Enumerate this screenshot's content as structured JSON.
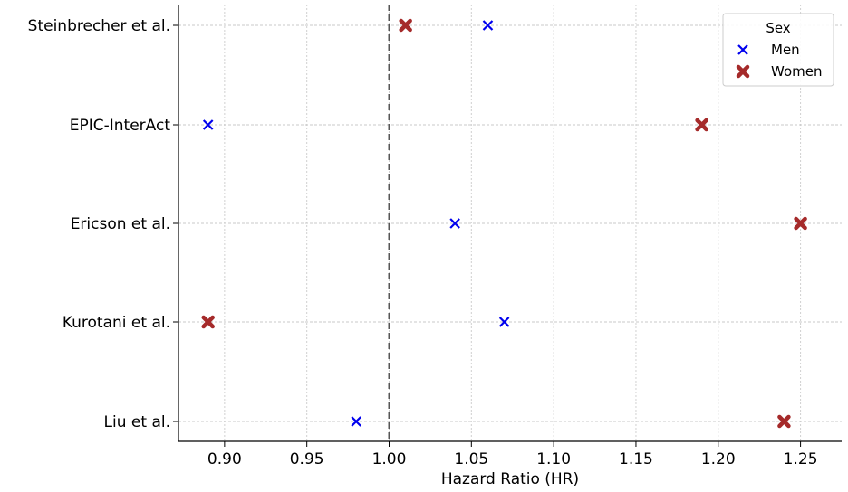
{
  "chart_data": {
    "type": "scatter",
    "title": "",
    "xlabel": "Hazard Ratio (HR)",
    "ylabel": "",
    "xlim": [
      0.872,
      1.275
    ],
    "xticks": [
      "0.90",
      "0.95",
      "1.00",
      "1.05",
      "1.10",
      "1.15",
      "1.20",
      "1.25"
    ],
    "categories": [
      "Steinbrecher et al.",
      "EPIC-InterAct",
      "Ericson et al.",
      "Kurotani et al.",
      "Liu et al."
    ],
    "reference_line": {
      "x": 1.0,
      "style": "dashed",
      "color": "#555555"
    },
    "grid": true,
    "legend": {
      "title": "Sex",
      "position": "top-right"
    },
    "series": [
      {
        "name": "Men",
        "marker": "x",
        "color": "#0000ee",
        "values": [
          1.06,
          0.89,
          1.04,
          1.07,
          0.98
        ]
      },
      {
        "name": "Women",
        "marker": "X",
        "color": "#a52a2a",
        "values": [
          1.01,
          1.19,
          1.25,
          0.89,
          1.24
        ]
      }
    ]
  }
}
